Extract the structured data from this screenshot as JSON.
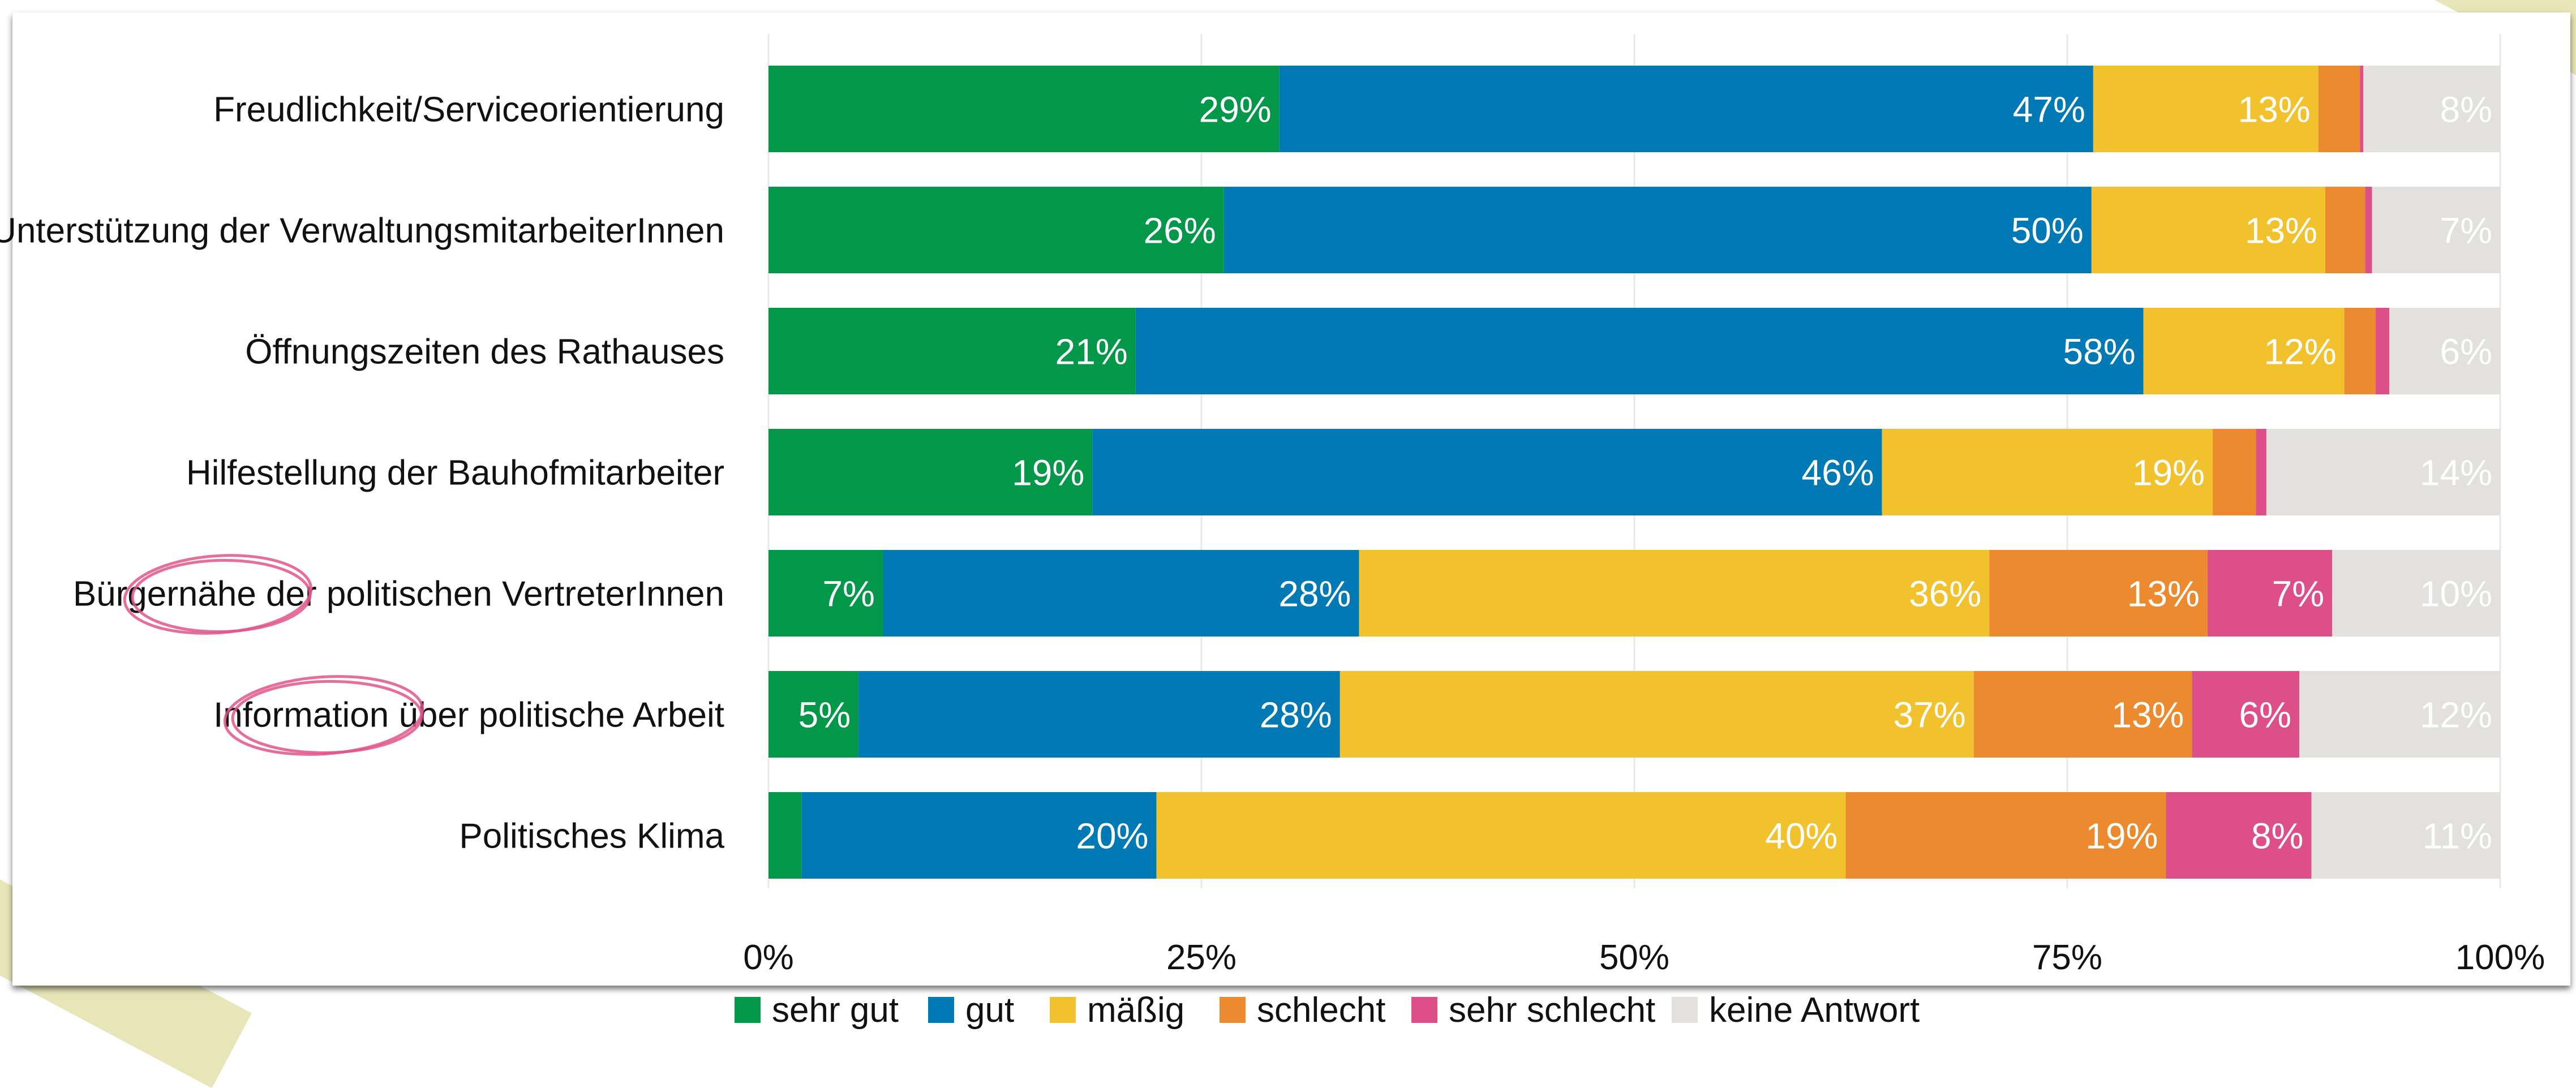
{
  "chart_data": {
    "type": "bar",
    "orientation": "horizontal",
    "stacked": true,
    "categories": [
      "Freudlichkeit/Serviceorientierung",
      "Unterstützung der VerwaltungsmitarbeiterInnen",
      "Öffnungszeiten des Rathauses",
      "Hilfestellung der Bauhofmitarbeiter",
      "Bürgernähe der politischen VertreterInnen",
      "Information über politische Arbeit",
      "Politisches Klima"
    ],
    "series": [
      {
        "name": "sehr gut",
        "color": "#03974a",
        "values": [
          29.5,
          26.3,
          21.2,
          18.7,
          6.6,
          5.2,
          1.9
        ],
        "labels": [
          "29%",
          "26%",
          "21%",
          "19%",
          "7%",
          "5%",
          ""
        ]
      },
      {
        "name": "gut",
        "color": "#0079b4",
        "values": [
          47.0,
          50.1,
          58.2,
          45.6,
          27.5,
          27.8,
          20.5
        ],
        "labels": [
          "47%",
          "50%",
          "58%",
          "46%",
          "28%",
          "28%",
          "20%"
        ]
      },
      {
        "name": "mäßig",
        "color": "#f1c22d",
        "values": [
          13.0,
          13.5,
          11.6,
          19.1,
          36.4,
          36.6,
          39.8
        ],
        "labels": [
          "13%",
          "13%",
          "12%",
          "19%",
          "36%",
          "37%",
          "40%"
        ]
      },
      {
        "name": "schlecht",
        "color": "#ec8a2f",
        "values": [
          2.4,
          2.3,
          1.8,
          2.5,
          12.6,
          12.6,
          18.5
        ],
        "labels": [
          "",
          "",
          "",
          "",
          "13%",
          "13%",
          "19%"
        ]
      },
      {
        "name": "sehr schlecht",
        "color": "#dd4f89",
        "values": [
          0.2,
          0.4,
          0.8,
          0.6,
          7.2,
          6.2,
          8.4
        ],
        "labels": [
          "",
          "",
          "",
          "",
          "7%",
          "6%",
          "8%"
        ]
      },
      {
        "name": "keine Antwort",
        "color": "#e3e1de",
        "values": [
          7.9,
          7.4,
          6.4,
          13.5,
          9.7,
          11.6,
          10.9
        ],
        "labels": [
          "8%",
          "7%",
          "6%",
          "14%",
          "10%",
          "12%",
          "11%"
        ]
      }
    ],
    "xlim": [
      0,
      100
    ],
    "xticks": [
      "0%",
      "25%",
      "50%",
      "75%",
      "100%"
    ],
    "grid": true,
    "legend_position": "bottom",
    "highlights": [
      "Bürgernähe",
      "Information"
    ],
    "highlight_color": "#e0558a"
  }
}
